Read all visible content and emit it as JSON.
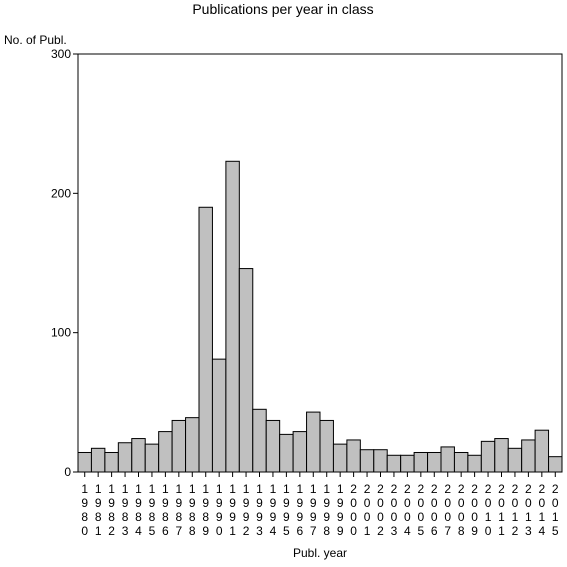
{
  "chart_data": {
    "type": "bar",
    "title": "Publications per year in class",
    "ylabel": "No. of Publ.",
    "xlabel": "Publ. year",
    "ylim": [
      0,
      300
    ],
    "yticks": [
      0,
      100,
      200,
      300
    ],
    "grid": false,
    "bar_color": "#c0c0c0",
    "categories": [
      "1980",
      "1981",
      "1982",
      "1983",
      "1984",
      "1985",
      "1986",
      "1987",
      "1988",
      "1989",
      "1990",
      "1991",
      "1992",
      "1993",
      "1994",
      "1995",
      "1996",
      "1997",
      "1998",
      "1999",
      "2000",
      "2001",
      "2002",
      "2003",
      "2004",
      "2005",
      "2006",
      "2007",
      "2008",
      "2009",
      "2010",
      "2011",
      "2012",
      "2013",
      "2014",
      "2015"
    ],
    "values": [
      14,
      17,
      14,
      21,
      24,
      20,
      29,
      37,
      39,
      190,
      81,
      223,
      146,
      45,
      37,
      27,
      29,
      43,
      37,
      20,
      23,
      16,
      16,
      12,
      12,
      14,
      14,
      18,
      14,
      12,
      22,
      24,
      17,
      23,
      30,
      11
    ]
  }
}
